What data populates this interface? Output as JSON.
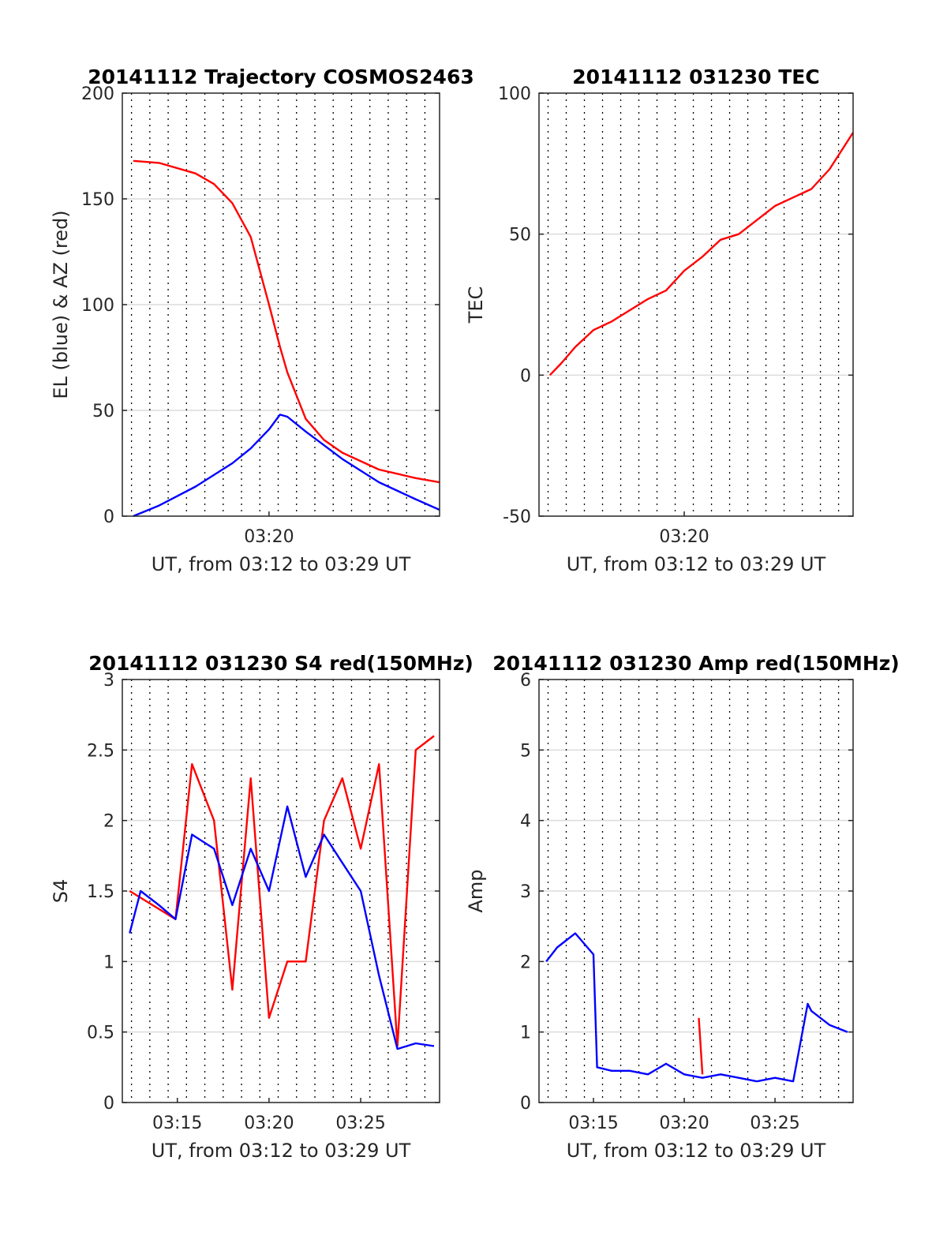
{
  "charts": [
    {
      "type": "line",
      "title": "20141112 Trajectory COSMOS2463",
      "xlabel": "UT, from 03:12 to 03:29 UT",
      "ylabel": "EL (blue) & AZ (red)",
      "ylim": [
        0,
        200
      ],
      "yticks": [
        "0",
        "50",
        "100",
        "150",
        "200"
      ],
      "xticks": [
        "03:20"
      ],
      "grid": true,
      "series": [
        {
          "name": "EL",
          "color": "#0000ff",
          "x": [
            "03:12.6",
            "03:14",
            "03:16",
            "03:18",
            "03:19",
            "03:20",
            "03:20.6",
            "03:21",
            "03:22",
            "03:24",
            "03:26",
            "03:28",
            "03:29.3"
          ],
          "values": [
            0,
            5,
            14,
            25,
            32,
            41,
            48,
            47,
            40,
            27,
            16,
            8,
            3
          ]
        },
        {
          "name": "AZ",
          "color": "#ff0000",
          "x": [
            "03:12.6",
            "03:14",
            "03:16",
            "03:17",
            "03:18",
            "03:19",
            "03:20",
            "03:20.6",
            "03:21",
            "03:22",
            "03:23",
            "03:24",
            "03:26",
            "03:28",
            "03:29.3"
          ],
          "values": [
            168,
            167,
            162,
            157,
            148,
            132,
            100,
            80,
            68,
            46,
            36,
            30,
            22,
            18,
            16
          ]
        }
      ]
    },
    {
      "type": "line",
      "title": "20141112 031230 TEC",
      "xlabel": "UT, from 03:12 to 03:29 UT",
      "ylabel": "TEC",
      "ylim": [
        -50,
        100
      ],
      "yticks": [
        "-50",
        "0",
        "50",
        "100"
      ],
      "xticks": [
        "03:20"
      ],
      "grid": true,
      "series": [
        {
          "name": "TEC",
          "color": "#ff0000",
          "x": [
            "03:12.6",
            "03:13.2",
            "03:14",
            "03:15",
            "03:16",
            "03:17",
            "03:18",
            "03:19",
            "03:20",
            "03:21",
            "03:22",
            "03:23",
            "03:24",
            "03:25",
            "03:26",
            "03:27",
            "03:28",
            "03:29.3"
          ],
          "values": [
            0,
            4,
            10,
            16,
            19,
            23,
            27,
            30,
            37,
            42,
            48,
            50,
            55,
            60,
            63,
            66,
            73,
            86
          ]
        }
      ]
    },
    {
      "type": "line",
      "title": "20141112 031230 S4 red(150MHz)",
      "xlabel": "UT, from 03:12 to 03:29 UT",
      "ylabel": "S4",
      "ylim": [
        0,
        3
      ],
      "yticks": [
        "0",
        "0.5",
        "1",
        "1.5",
        "2",
        "2.5",
        "3"
      ],
      "xticks": [
        "03:15",
        "03:20",
        "03:25"
      ],
      "grid": true,
      "series": [
        {
          "name": "S4 red",
          "color": "#ff0000",
          "x": [
            "03:12.4",
            "03:14.9",
            "03:15.8",
            "03:17",
            "03:18",
            "03:19",
            "03:20",
            "03:21",
            "03:22",
            "03:23",
            "03:24",
            "03:25",
            "03:26",
            "03:27",
            "03:28",
            "03:29"
          ],
          "values": [
            1.5,
            1.3,
            2.4,
            2.0,
            0.8,
            2.3,
            0.6,
            1.0,
            1.0,
            2.0,
            2.3,
            1.8,
            2.4,
            0.4,
            2.5,
            2.6
          ]
        },
        {
          "name": "S4 blue",
          "color": "#0000ff",
          "x": [
            "03:12.4",
            "03:13",
            "03:14",
            "03:14.9",
            "03:15.8",
            "03:17",
            "03:18",
            "03:19",
            "03:20",
            "03:21",
            "03:22",
            "03:23",
            "03:24",
            "03:25",
            "03:26",
            "03:27",
            "03:28",
            "03:29"
          ],
          "values": [
            1.2,
            1.5,
            1.4,
            1.3,
            1.9,
            1.8,
            1.4,
            1.8,
            1.5,
            2.1,
            1.6,
            1.9,
            1.7,
            1.5,
            0.9,
            0.38,
            0.42,
            0.4
          ]
        }
      ]
    },
    {
      "type": "line",
      "title": "20141112 031230 Amp red(150MHz)",
      "xlabel": "UT, from 03:12 to 03:29 UT",
      "ylabel": "Amp",
      "ylim": [
        0,
        6
      ],
      "yticks": [
        "0",
        "1",
        "2",
        "3",
        "4",
        "5",
        "6"
      ],
      "xticks": [
        "03:15",
        "03:20",
        "03:25"
      ],
      "grid": true,
      "series": [
        {
          "name": "Amp blue",
          "color": "#0000ff",
          "x": [
            "03:12.4",
            "03:13",
            "03:14",
            "03:15",
            "03:15.2",
            "03:16",
            "03:17",
            "03:18",
            "03:19",
            "03:20",
            "03:21",
            "03:22",
            "03:23",
            "03:24",
            "03:25",
            "03:26",
            "03:26.8",
            "03:27",
            "03:28",
            "03:29"
          ],
          "values": [
            2.0,
            2.2,
            2.4,
            2.1,
            0.5,
            0.45,
            0.45,
            0.4,
            0.55,
            0.4,
            0.35,
            0.4,
            0.35,
            0.3,
            0.35,
            0.3,
            1.4,
            1.3,
            1.1,
            1.0
          ]
        },
        {
          "name": "Amp red",
          "color": "#ff0000",
          "x": [
            "03:20.8",
            "03:21"
          ],
          "values": [
            1.2,
            0.4
          ]
        }
      ]
    }
  ]
}
